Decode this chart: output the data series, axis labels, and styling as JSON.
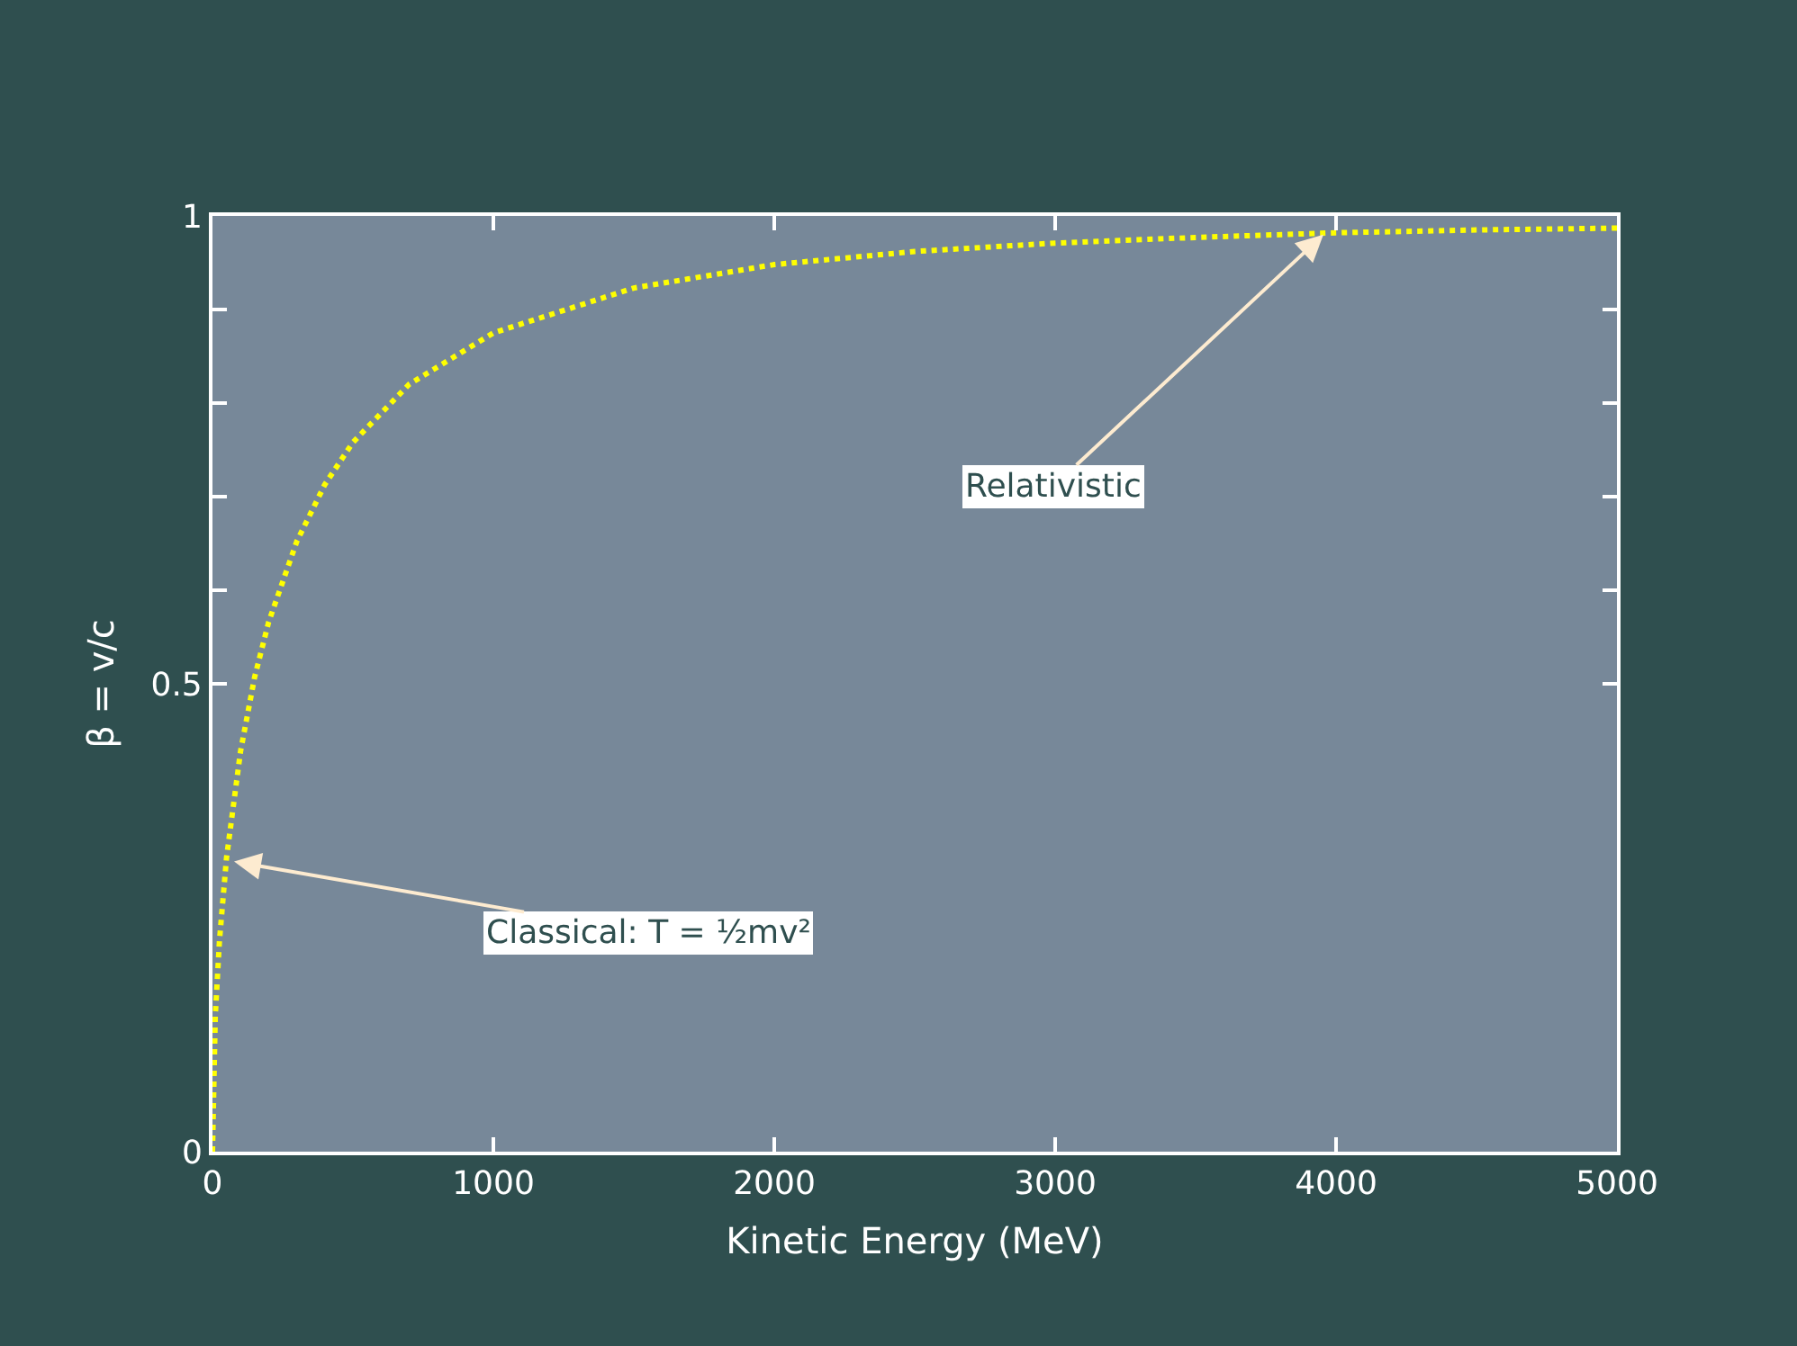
{
  "chart_data": {
    "type": "line",
    "xlabel": "Kinetic Energy (MeV)",
    "ylabel": "β = v/c",
    "x": [
      0,
      10,
      25,
      50,
      100,
      150,
      200,
      300,
      400,
      500,
      700,
      1000,
      1500,
      2000,
      2500,
      3000,
      3500,
      4000,
      4500,
      5000
    ],
    "series": [
      {
        "color": "#ffff00",
        "values": [
          0,
          0.145,
          0.226,
          0.314,
          0.428,
          0.507,
          0.566,
          0.652,
          0.713,
          0.758,
          0.82,
          0.875,
          0.923,
          0.948,
          0.962,
          0.971,
          0.977,
          0.982,
          0.985,
          0.987
        ]
      }
    ],
    "xlim": [
      0,
      5000
    ],
    "xticks": [
      0,
      1000,
      2000,
      3000,
      4000,
      5000
    ],
    "ylim": [
      0,
      1
    ],
    "yticks": [
      0,
      {
        "value": 0.5,
        "label": "0.5"
      },
      {
        "value": 0.6,
        "label": null
      },
      {
        "value": 0.7,
        "label": null
      },
      {
        "value": 0.8,
        "label": null
      },
      {
        "value": 0.9,
        "label": null
      },
      1
    ],
    "annotations": [
      {
        "text": "Relativistic",
        "x": 3955,
        "y": 0.98
      },
      {
        "text": "Classical: T = ½mv²",
        "x": 77,
        "y": 0.31
      }
    ],
    "grid": false,
    "marker": "none",
    "line_style": "dotted"
  }
}
